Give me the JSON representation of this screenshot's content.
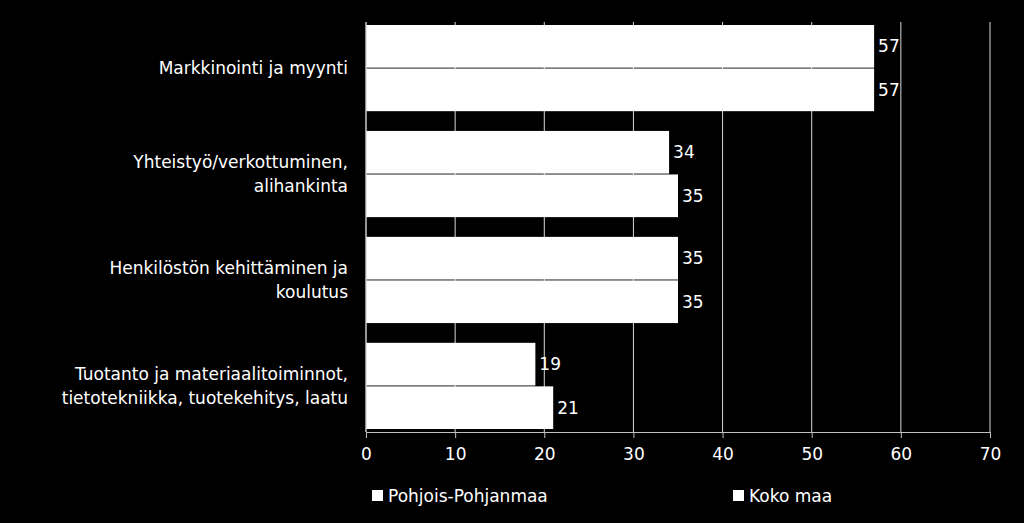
{
  "chart_data": {
    "type": "bar",
    "orientation": "horizontal",
    "categories": [
      "Markkinointi ja myynti",
      "Yhteistyö/verkottuminen, alihankinta",
      "Henkilöstön kehittäminen ja koulutus",
      "Tuotanto ja materiaalitoiminnot, tietotekniikka, tuotekehitys, laatu"
    ],
    "series": [
      {
        "name": "Pohjois-Pohjanmaa",
        "color": "#ffffff",
        "values": [
          57,
          34,
          35,
          19
        ]
      },
      {
        "name": "Koko maa",
        "color": "#ffffff",
        "values": [
          57,
          35,
          35,
          21
        ]
      }
    ],
    "xlim": [
      0,
      70
    ],
    "xticks": [
      0,
      10,
      20,
      30,
      40,
      50,
      60,
      70
    ],
    "grid": true,
    "data_labels": true,
    "legend": "bottom"
  }
}
